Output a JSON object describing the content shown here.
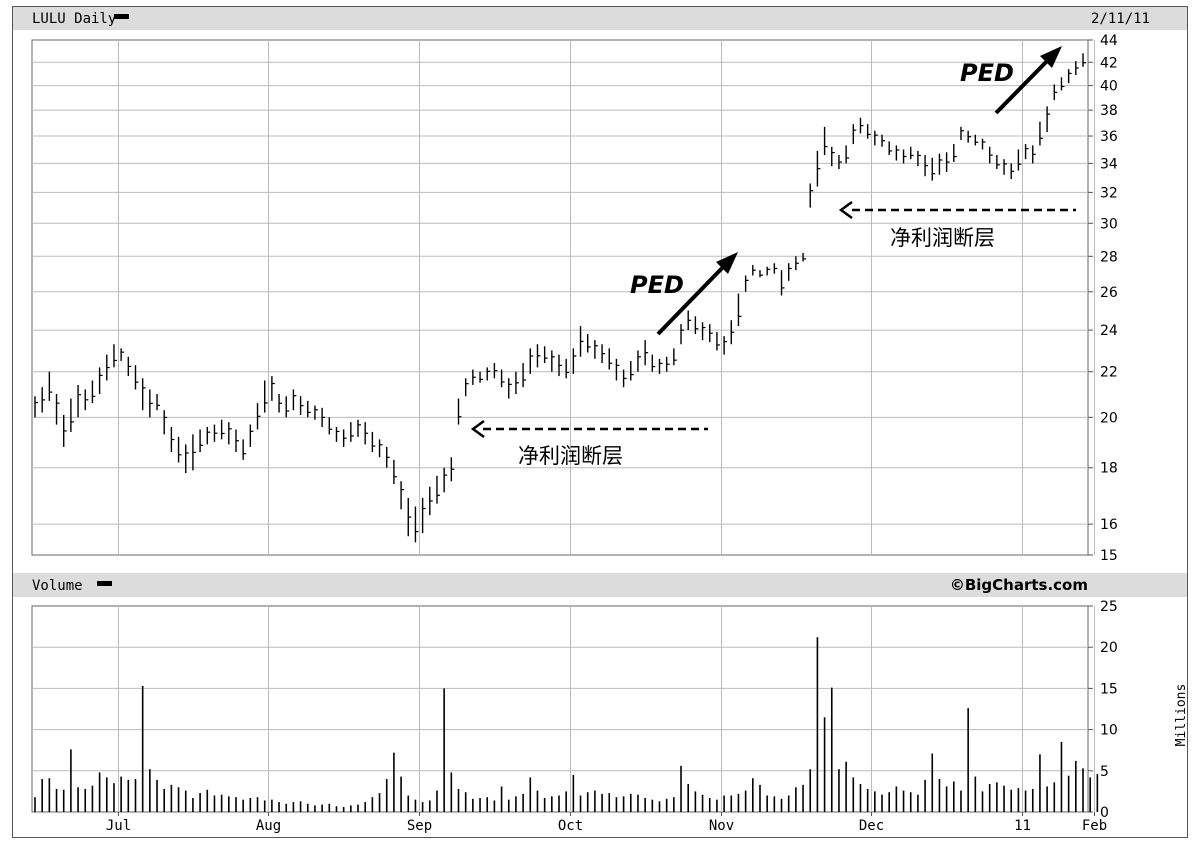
{
  "chart_data": [
    {
      "type": "ohlc",
      "title": "LULU Daily",
      "date_label": "2/11/11",
      "source": "©BigCharts.com",
      "scale": "log",
      "ylim": [
        15,
        44
      ],
      "y_ticks": [
        15,
        16,
        18,
        20,
        22,
        24,
        26,
        28,
        30,
        32,
        34,
        36,
        38,
        40,
        42,
        44
      ],
      "x_ticks": [
        "Jul",
        "Aug",
        "Sep",
        "Oct",
        "Nov",
        "Dec",
        "11",
        "Feb"
      ],
      "grid": true,
      "series": [
        {
          "values": [
            [
              20.0,
              20.9
            ],
            [
              20.2,
              21.3
            ],
            [
              20.7,
              22.0
            ],
            [
              19.7,
              21.0
            ],
            [
              18.8,
              20.1
            ],
            [
              19.4,
              20.8
            ],
            [
              20.0,
              21.4
            ],
            [
              20.3,
              21.2
            ],
            [
              20.6,
              21.6
            ],
            [
              21.0,
              22.2
            ],
            [
              21.6,
              22.8
            ],
            [
              22.2,
              23.3
            ],
            [
              22.5,
              23.1
            ],
            [
              21.8,
              22.7
            ],
            [
              21.2,
              22.3
            ],
            [
              20.3,
              21.7
            ],
            [
              20.0,
              21.2
            ],
            [
              20.3,
              21.0
            ],
            [
              19.3,
              20.3
            ],
            [
              18.6,
              19.6
            ],
            [
              18.2,
              19.2
            ],
            [
              17.8,
              18.9
            ],
            [
              17.9,
              19.3
            ],
            [
              18.6,
              19.5
            ],
            [
              18.9,
              19.6
            ],
            [
              19.0,
              19.7
            ],
            [
              19.1,
              19.9
            ],
            [
              18.9,
              19.8
            ],
            [
              18.6,
              19.5
            ],
            [
              18.3,
              19.1
            ],
            [
              18.8,
              19.7
            ],
            [
              19.5,
              20.6
            ],
            [
              20.2,
              21.6
            ],
            [
              20.7,
              21.8
            ],
            [
              20.2,
              21.0
            ],
            [
              20.0,
              20.9
            ],
            [
              20.3,
              21.2
            ],
            [
              20.1,
              20.9
            ],
            [
              20.0,
              20.7
            ],
            [
              19.9,
              20.5
            ],
            [
              19.6,
              20.4
            ],
            [
              19.3,
              20.0
            ],
            [
              19.0,
              19.6
            ],
            [
              18.8,
              19.5
            ],
            [
              19.0,
              19.8
            ],
            [
              19.2,
              19.9
            ],
            [
              18.9,
              19.8
            ],
            [
              18.6,
              19.4
            ],
            [
              18.4,
              19.1
            ],
            [
              18.0,
              18.8
            ],
            [
              17.4,
              18.3
            ],
            [
              16.5,
              17.5
            ],
            [
              15.6,
              16.9
            ],
            [
              15.4,
              16.6
            ],
            [
              15.7,
              16.9
            ],
            [
              16.3,
              17.3
            ],
            [
              16.7,
              17.7
            ],
            [
              17.1,
              18.0
            ],
            [
              17.5,
              18.4
            ],
            [
              19.7,
              20.8
            ],
            [
              20.9,
              21.7
            ],
            [
              21.4,
              22.1
            ],
            [
              21.5,
              22.0
            ],
            [
              21.6,
              22.2
            ],
            [
              21.7,
              22.4
            ],
            [
              21.3,
              22.1
            ],
            [
              20.8,
              21.7
            ],
            [
              21.0,
              22.0
            ],
            [
              21.3,
              22.4
            ],
            [
              21.9,
              23.1
            ],
            [
              22.2,
              23.3
            ],
            [
              22.4,
              23.2
            ],
            [
              22.0,
              23.0
            ],
            [
              21.8,
              22.8
            ],
            [
              21.7,
              22.6
            ],
            [
              21.9,
              23.1
            ],
            [
              22.7,
              24.2
            ],
            [
              22.9,
              23.8
            ],
            [
              22.6,
              23.5
            ],
            [
              22.4,
              23.3
            ],
            [
              22.1,
              23.1
            ],
            [
              21.6,
              22.6
            ],
            [
              21.3,
              22.1
            ],
            [
              21.6,
              22.5
            ],
            [
              22.0,
              23.0
            ],
            [
              22.3,
              23.5
            ],
            [
              22.0,
              22.8
            ],
            [
              21.9,
              22.6
            ],
            [
              22.0,
              22.7
            ],
            [
              22.3,
              23.1
            ],
            [
              23.3,
              24.3
            ],
            [
              24.0,
              25.0
            ],
            [
              23.8,
              24.7
            ],
            [
              23.5,
              24.4
            ],
            [
              23.4,
              24.3
            ],
            [
              23.0,
              23.9
            ],
            [
              22.8,
              23.7
            ],
            [
              23.3,
              24.5
            ],
            [
              24.2,
              25.9
            ],
            [
              26.0,
              26.9
            ],
            [
              26.9,
              27.5
            ],
            [
              26.8,
              27.2
            ],
            [
              26.9,
              27.4
            ],
            [
              27.0,
              27.6
            ],
            [
              25.8,
              27.2
            ],
            [
              26.6,
              27.6
            ],
            [
              27.2,
              28.0
            ],
            [
              27.7,
              28.2
            ],
            [
              31.0,
              32.6
            ],
            [
              32.4,
              34.9
            ],
            [
              34.6,
              36.7
            ],
            [
              33.8,
              35.2
            ],
            [
              33.6,
              34.6
            ],
            [
              34.0,
              35.3
            ],
            [
              35.4,
              36.9
            ],
            [
              36.2,
              37.4
            ],
            [
              35.8,
              36.9
            ],
            [
              35.3,
              36.4
            ],
            [
              35.2,
              36.1
            ],
            [
              34.6,
              35.6
            ],
            [
              34.2,
              35.3
            ],
            [
              34.0,
              35.0
            ],
            [
              34.3,
              35.2
            ],
            [
              33.8,
              34.9
            ],
            [
              33.1,
              34.6
            ],
            [
              32.8,
              34.4
            ],
            [
              33.2,
              34.7
            ],
            [
              33.4,
              34.8
            ],
            [
              34.1,
              35.4
            ],
            [
              35.7,
              36.7
            ],
            [
              35.5,
              36.4
            ],
            [
              35.3,
              36.1
            ],
            [
              35.0,
              35.8
            ],
            [
              34.0,
              35.2
            ],
            [
              33.6,
              34.6
            ],
            [
              33.2,
              34.3
            ],
            [
              32.9,
              34.0
            ],
            [
              33.5,
              35.0
            ],
            [
              34.3,
              35.4
            ],
            [
              34.0,
              35.3
            ],
            [
              35.3,
              37.1
            ],
            [
              36.3,
              38.3
            ],
            [
              38.8,
              40.1
            ],
            [
              39.6,
              40.7
            ],
            [
              40.2,
              41.4
            ],
            [
              40.9,
              42.1
            ],
            [
              41.6,
              42.8
            ]
          ]
        }
      ],
      "annotations": [
        {
          "text": "PED",
          "kind": "arrow-up"
        },
        {
          "text": "PED",
          "kind": "arrow-up"
        },
        {
          "text": "净利润断层",
          "kind": "dashed-arrow-left",
          "level": 20.2
        },
        {
          "text": "净利润断层",
          "kind": "dashed-arrow-left",
          "level": 31.0
        }
      ]
    },
    {
      "type": "bar",
      "title": "Volume",
      "ylabel": "Millions",
      "ylim": [
        0,
        25
      ],
      "y_ticks": [
        0,
        5,
        10,
        15,
        20,
        25
      ],
      "x_ticks": [
        "Jul",
        "Aug",
        "Sep",
        "Oct",
        "Nov",
        "Dec",
        "11",
        "Feb"
      ],
      "grid": true,
      "series": [
        {
          "values": [
            1.8,
            4.0,
            4.1,
            2.8,
            2.7,
            7.6,
            3.0,
            2.8,
            3.2,
            4.8,
            4.2,
            3.5,
            4.3,
            3.9,
            4.0,
            15.3,
            5.2,
            3.9,
            2.8,
            3.3,
            3.0,
            2.6,
            1.7,
            2.3,
            2.7,
            2.0,
            2.1,
            1.9,
            1.8,
            1.5,
            1.7,
            1.8,
            1.4,
            1.5,
            1.2,
            1.0,
            1.2,
            1.3,
            1.0,
            0.8,
            0.9,
            1.0,
            0.7,
            0.6,
            0.8,
            0.9,
            1.2,
            1.8,
            2.3,
            4.0,
            7.2,
            4.3,
            2.0,
            1.5,
            1.2,
            1.4,
            2.6,
            15.0,
            4.8,
            2.8,
            2.4,
            1.6,
            1.7,
            1.8,
            1.4,
            3.1,
            1.5,
            1.9,
            2.2,
            4.2,
            2.6,
            1.7,
            1.9,
            2.0,
            2.5,
            4.5,
            2.0,
            2.4,
            2.6,
            2.2,
            2.3,
            1.8,
            1.9,
            2.2,
            2.1,
            1.7,
            1.5,
            1.3,
            1.6,
            1.8,
            5.6,
            3.4,
            2.5,
            2.1,
            1.7,
            1.5,
            2.0,
            2.0,
            2.2,
            2.6,
            4.1,
            3.3,
            2.0,
            1.9,
            1.6,
            2.0,
            3.0,
            3.3,
            5.2,
            21.2,
            11.5,
            15.1,
            5.2,
            6.1,
            4.2,
            3.4,
            2.8,
            2.5,
            2.1,
            2.4,
            3.1,
            2.6,
            2.4,
            2.1,
            3.9,
            7.1,
            4.0,
            3.1,
            3.7,
            2.6,
            12.6,
            4.3,
            2.5,
            3.4,
            3.6,
            3.2,
            2.7,
            2.9,
            2.6,
            2.8,
            7.0,
            3.1,
            3.6,
            8.5,
            4.4,
            6.2,
            5.3,
            4.2,
            4.6
          ]
        }
      ]
    }
  ]
}
